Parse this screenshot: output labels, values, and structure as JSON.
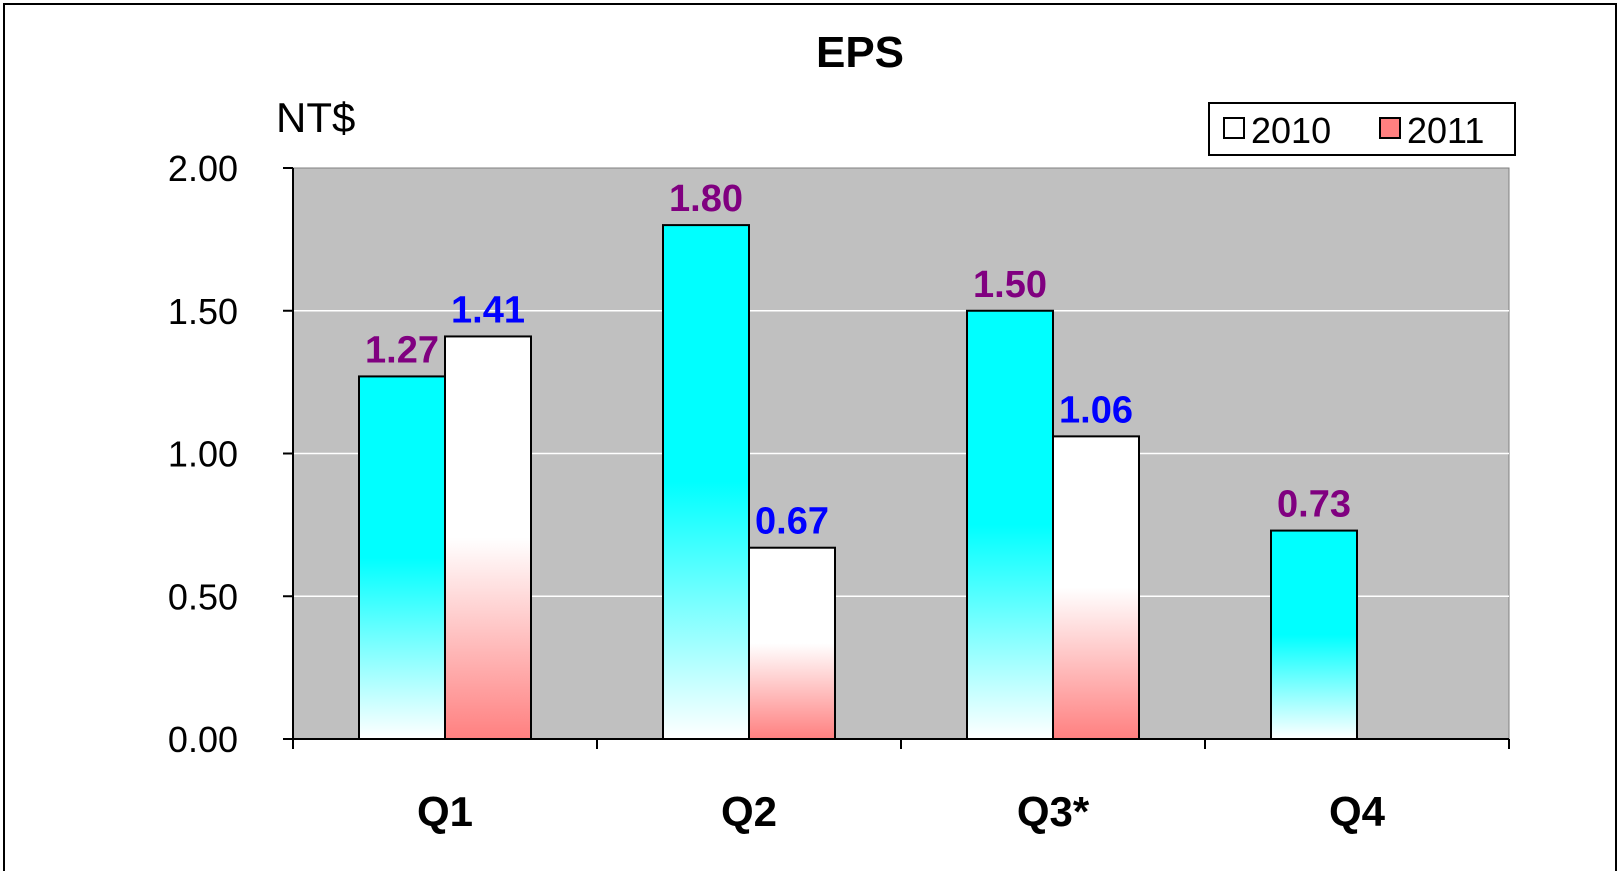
{
  "chart_data": {
    "type": "bar",
    "title": "EPS",
    "ylabel": "NT$",
    "xlabel": "",
    "categories": [
      "Q1",
      "Q2",
      "Q3*",
      "Q4"
    ],
    "ylim": [
      0,
      2
    ],
    "yticks": [
      0,
      0.5,
      1,
      1.5,
      2
    ],
    "ytick_labels": [
      "0.00",
      "0.50",
      "1.00",
      "1.50",
      "2.00"
    ],
    "grid": true,
    "legend_position": "top-right",
    "series": [
      {
        "name": "2010",
        "values": [
          1.27,
          1.8,
          1.5,
          0.73
        ],
        "labels": [
          "1.27",
          "1.80",
          "1.50",
          "0.73"
        ],
        "fill_color": "#00ffff",
        "label_color": "#800080",
        "legend_color": "#ffffff"
      },
      {
        "name": "2011",
        "values": [
          1.41,
          0.67,
          1.06,
          null
        ],
        "labels": [
          "1.41",
          "0.67",
          "1.06",
          ""
        ],
        "fill_color": "#ffffff",
        "accent_color": "#ff8080",
        "label_color": "#0000ff",
        "legend_color": "#ff8080"
      }
    ],
    "plot_background": "#c0c0c0",
    "gridline_color": "#ffffff"
  }
}
